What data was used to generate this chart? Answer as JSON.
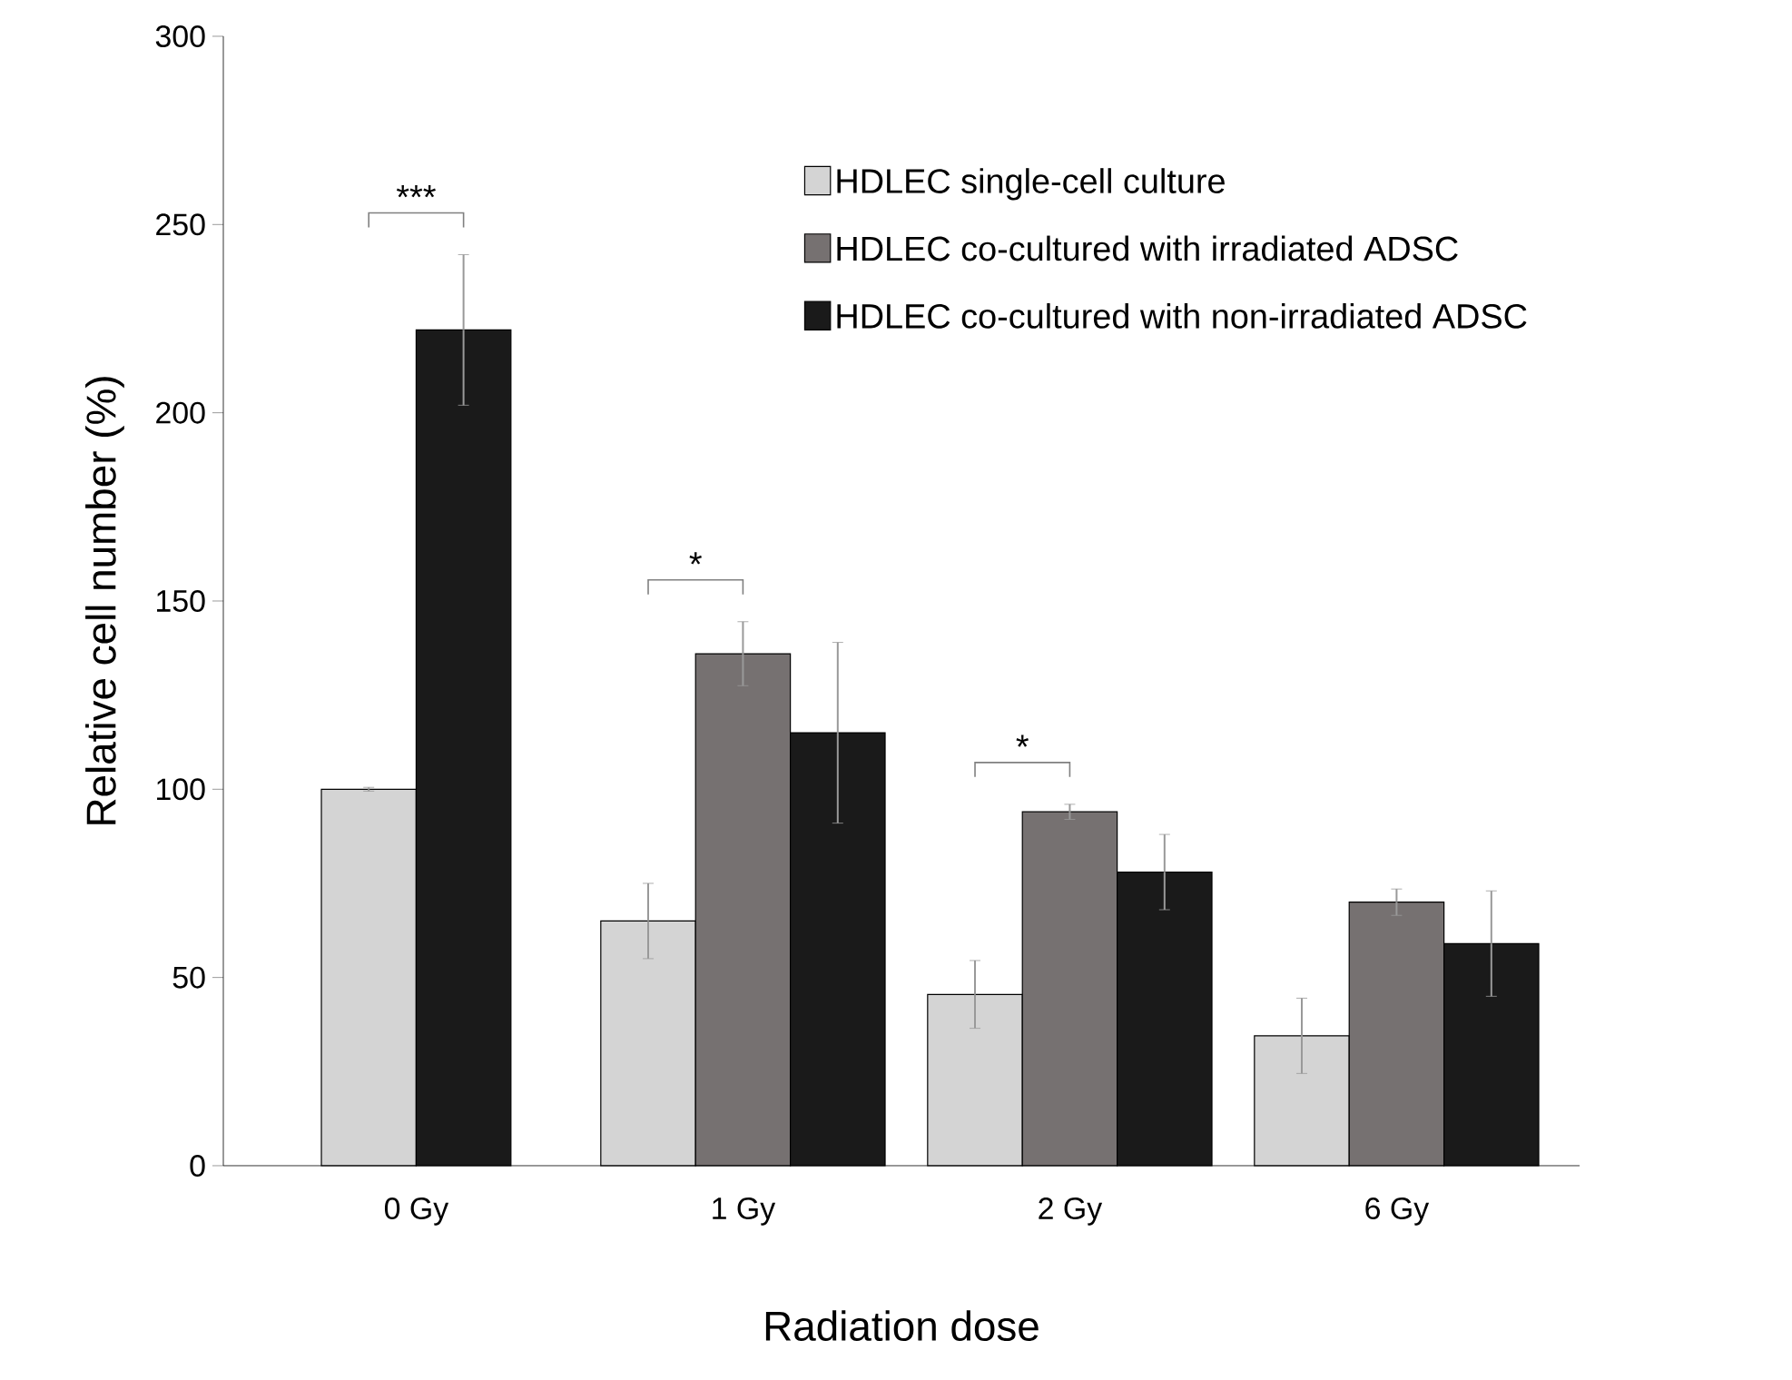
{
  "chart_data": {
    "type": "bar",
    "xlabel": "Radiation dose",
    "ylabel": "Relative cell number (%)",
    "categories": [
      "0 Gy",
      "1 Gy",
      "2 Gy",
      "6 Gy"
    ],
    "series": [
      {
        "name": "HDLEC single-cell culture",
        "color": "#d4d4d4",
        "values": [
          100,
          65,
          45.5,
          34.5
        ],
        "errors": [
          0.5,
          10,
          9,
          10
        ]
      },
      {
        "name": "HDLEC co-cultured with irradiated ADSC",
        "color": "#767171",
        "values": [
          null,
          136,
          94,
          70
        ],
        "errors": [
          null,
          8.5,
          2,
          3.5
        ]
      },
      {
        "name": "HDLEC co-cultured with non-irradiated ADSC",
        "color": "#1a1a1a",
        "values": [
          222,
          115,
          78,
          59
        ],
        "errors": [
          20,
          24,
          10,
          14
        ]
      }
    ],
    "ylim": [
      0,
      300
    ],
    "yticks": [
      0,
      50,
      100,
      150,
      200,
      250,
      300
    ],
    "legend": "top right",
    "grid": false,
    "annotations": [
      "***",
      "*",
      "*"
    ]
  }
}
